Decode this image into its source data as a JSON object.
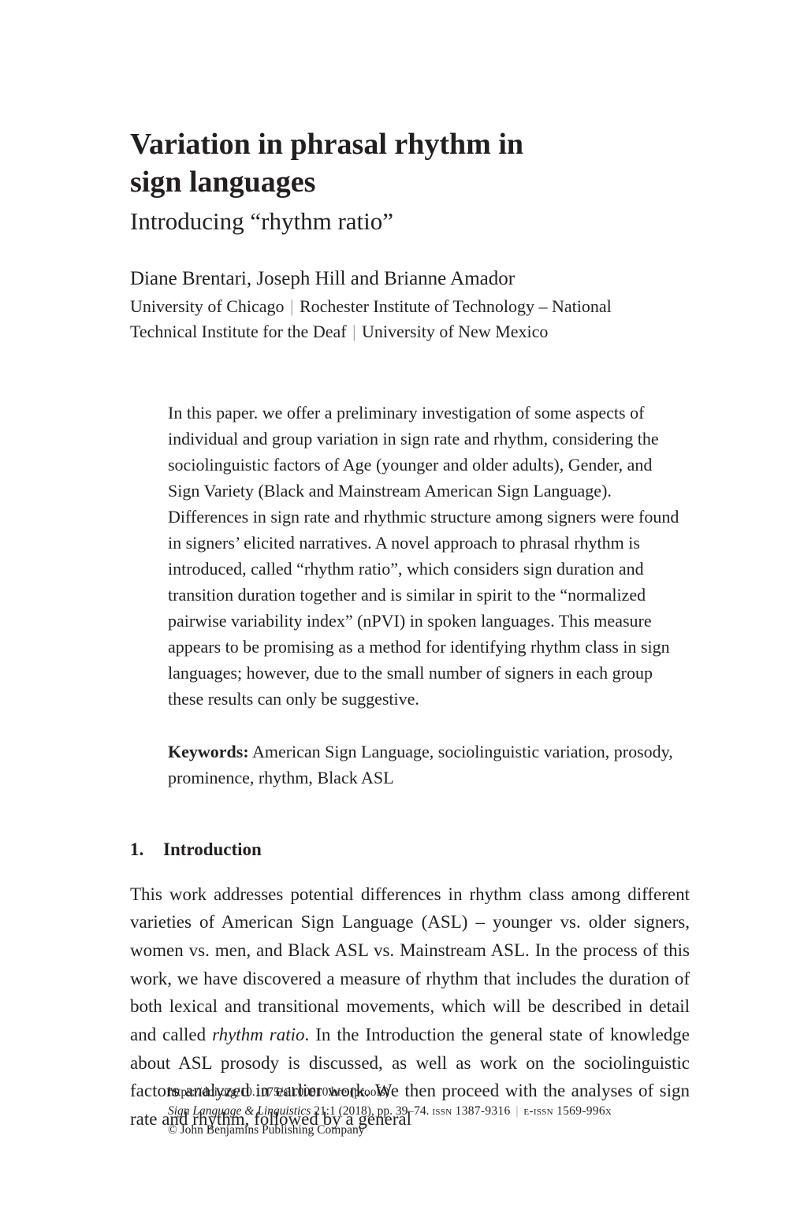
{
  "title_line1": "Variation in phrasal rhythm in",
  "title_line2": "sign languages",
  "subtitle": "Introducing “rhythm ratio”",
  "authors": "Diane Brentari, Joseph Hill and Brianne Amador",
  "affil_1": "University of Chicago",
  "affil_2a": "Rochester Institute of Technology – National",
  "affil_2b": "Technical Institute for the Deaf",
  "affil_3": "University of New Mexico",
  "abstract": "In this paper. we offer a preliminary investigation of some aspects of individual and group variation in sign rate and rhythm, considering the sociolinguistic factors of Age (younger and older adults), Gender, and Sign Variety (Black and Mainstream American Sign Language). Differences in sign rate and rhythmic structure among signers were found in signers’ elicited narratives. A novel approach to phrasal rhythm is introduced, called “rhythm ratio”, which considers sign duration and transition duration together and is similar in spirit to the “normalized pairwise variability index” (nPVI) in spoken languages. This measure appears to be promising as a method for identifying rhythm class in sign languages; however, due to the small number of signers in each group these results can only be suggestive.",
  "keywords_label": "Keywords:",
  "keywords_text": " American Sign Language, sociolinguistic variation, prosody, prominence, rhythm, Black ASL",
  "section_num": "1.",
  "section_title": "Introduction",
  "body_p1_a": "This work addresses potential differences in rhythm class among different varieties of American Sign Language (ASL) – younger vs. older signers, women vs. men, and Black ASL vs. Mainstream ASL. In the process of this work, we have discovered a measure of rhythm that includes the duration of both lexical and transitional movements, which will be described in detail and called ",
  "body_p1_italic": "rhythm ratio",
  "body_p1_b": ". In the Introduction the general state of knowledge about ASL prosody is discussed, as well as work on the sociolinguistic factors analyzed in earlier work. We then proceed with the analyses of sign rate and rhythm, followed by a general",
  "footer_doi": "https://doi.org/10.1075/sll.00010.bre  (proofs)",
  "footer_journal_italic": "Sign Language & Linguistics",
  "footer_vol": "  21:1 (2018), pp. 39–74. ",
  "footer_issn": "issn 1387-9316",
  "footer_eissn": "e-issn 1569-996x",
  "footer_copyright": "© John Benjamins Publishing Company"
}
